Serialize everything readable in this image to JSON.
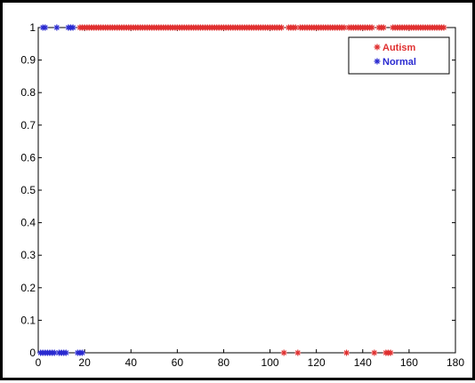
{
  "chart_data": {
    "type": "scatter",
    "title": "",
    "xlabel": "",
    "ylabel": "",
    "xlim": [
      0,
      180
    ],
    "ylim": [
      0,
      1
    ],
    "grid": false,
    "legend_position": "top-right",
    "x_ticks": [
      0,
      20,
      40,
      60,
      80,
      100,
      120,
      140,
      160,
      180
    ],
    "y_ticks": [
      0,
      0.1,
      0.2,
      0.3,
      0.4,
      0.5,
      0.6,
      0.7,
      0.8,
      0.9,
      1
    ],
    "x_tick_labels": [
      "0",
      "20",
      "40",
      "60",
      "80",
      "100",
      "120",
      "140",
      "160",
      "180"
    ],
    "y_tick_labels": [
      "0",
      "0.1",
      "0.2",
      "0.3",
      "0.4",
      "0.5",
      "0.6",
      "0.7",
      "0.8",
      "0.9",
      "1"
    ],
    "series": [
      {
        "name": "Autism",
        "color": "#e03030",
        "marker": "asterisk",
        "points": [
          [
            18,
            1
          ],
          [
            19,
            1
          ],
          [
            20,
            1
          ],
          [
            21,
            1
          ],
          [
            22,
            1
          ],
          [
            23,
            1
          ],
          [
            24,
            1
          ],
          [
            25,
            1
          ],
          [
            26,
            1
          ],
          [
            27,
            1
          ],
          [
            28,
            1
          ],
          [
            29,
            1
          ],
          [
            30,
            1
          ],
          [
            31,
            1
          ],
          [
            32,
            1
          ],
          [
            33,
            1
          ],
          [
            34,
            1
          ],
          [
            35,
            1
          ],
          [
            36,
            1
          ],
          [
            37,
            1
          ],
          [
            38,
            1
          ],
          [
            39,
            1
          ],
          [
            40,
            1
          ],
          [
            41,
            1
          ],
          [
            42,
            1
          ],
          [
            43,
            1
          ],
          [
            44,
            1
          ],
          [
            45,
            1
          ],
          [
            46,
            1
          ],
          [
            47,
            1
          ],
          [
            48,
            1
          ],
          [
            49,
            1
          ],
          [
            50,
            1
          ],
          [
            51,
            1
          ],
          [
            52,
            1
          ],
          [
            53,
            1
          ],
          [
            54,
            1
          ],
          [
            55,
            1
          ],
          [
            56,
            1
          ],
          [
            57,
            1
          ],
          [
            58,
            1
          ],
          [
            59,
            1
          ],
          [
            60,
            1
          ],
          [
            61,
            1
          ],
          [
            62,
            1
          ],
          [
            63,
            1
          ],
          [
            64,
            1
          ],
          [
            65,
            1
          ],
          [
            66,
            1
          ],
          [
            67,
            1
          ],
          [
            68,
            1
          ],
          [
            69,
            1
          ],
          [
            70,
            1
          ],
          [
            71,
            1
          ],
          [
            72,
            1
          ],
          [
            73,
            1
          ],
          [
            74,
            1
          ],
          [
            75,
            1
          ],
          [
            76,
            1
          ],
          [
            77,
            1
          ],
          [
            78,
            1
          ],
          [
            79,
            1
          ],
          [
            80,
            1
          ],
          [
            81,
            1
          ],
          [
            82,
            1
          ],
          [
            83,
            1
          ],
          [
            84,
            1
          ],
          [
            85,
            1
          ],
          [
            86,
            1
          ],
          [
            87,
            1
          ],
          [
            88,
            1
          ],
          [
            89,
            1
          ],
          [
            90,
            1
          ],
          [
            91,
            1
          ],
          [
            92,
            1
          ],
          [
            93,
            1
          ],
          [
            94,
            1
          ],
          [
            95,
            1
          ],
          [
            96,
            1
          ],
          [
            97,
            1
          ],
          [
            98,
            1
          ],
          [
            99,
            1
          ],
          [
            100,
            1
          ],
          [
            101,
            1
          ],
          [
            102,
            1
          ],
          [
            103,
            1
          ],
          [
            104,
            1
          ],
          [
            105,
            1
          ],
          [
            108,
            1
          ],
          [
            109,
            1
          ],
          [
            110,
            1
          ],
          [
            111,
            1
          ],
          [
            113,
            1
          ],
          [
            114,
            1
          ],
          [
            115,
            1
          ],
          [
            116,
            1
          ],
          [
            117,
            1
          ],
          [
            118,
            1
          ],
          [
            119,
            1
          ],
          [
            120,
            1
          ],
          [
            121,
            1
          ],
          [
            122,
            1
          ],
          [
            123,
            1
          ],
          [
            124,
            1
          ],
          [
            125,
            1
          ],
          [
            126,
            1
          ],
          [
            127,
            1
          ],
          [
            128,
            1
          ],
          [
            129,
            1
          ],
          [
            130,
            1
          ],
          [
            131,
            1
          ],
          [
            132,
            1
          ],
          [
            134,
            1
          ],
          [
            135,
            1
          ],
          [
            136,
            1
          ],
          [
            137,
            1
          ],
          [
            138,
            1
          ],
          [
            139,
            1
          ],
          [
            140,
            1
          ],
          [
            141,
            1
          ],
          [
            142,
            1
          ],
          [
            143,
            1
          ],
          [
            144,
            1
          ],
          [
            147,
            1
          ],
          [
            148,
            1
          ],
          [
            149,
            1
          ],
          [
            153,
            1
          ],
          [
            154,
            1
          ],
          [
            155,
            1
          ],
          [
            156,
            1
          ],
          [
            157,
            1
          ],
          [
            158,
            1
          ],
          [
            159,
            1
          ],
          [
            160,
            1
          ],
          [
            161,
            1
          ],
          [
            162,
            1
          ],
          [
            163,
            1
          ],
          [
            164,
            1
          ],
          [
            165,
            1
          ],
          [
            166,
            1
          ],
          [
            167,
            1
          ],
          [
            168,
            1
          ],
          [
            169,
            1
          ],
          [
            170,
            1
          ],
          [
            171,
            1
          ],
          [
            172,
            1
          ],
          [
            173,
            1
          ],
          [
            174,
            1
          ],
          [
            175,
            1
          ],
          [
            106,
            0
          ],
          [
            112,
            0
          ],
          [
            133,
            0
          ],
          [
            145,
            0
          ],
          [
            150,
            0
          ],
          [
            151,
            0
          ],
          [
            152,
            0
          ]
        ]
      },
      {
        "name": "Normal",
        "color": "#2a2ad0",
        "marker": "asterisk",
        "points": [
          [
            2,
            1
          ],
          [
            3,
            1
          ],
          [
            8,
            1
          ],
          [
            13,
            1
          ],
          [
            14,
            1
          ],
          [
            15,
            1
          ],
          [
            1,
            0
          ],
          [
            2,
            0
          ],
          [
            3,
            0
          ],
          [
            4,
            0
          ],
          [
            5,
            0
          ],
          [
            6,
            0
          ],
          [
            7,
            0
          ],
          [
            9,
            0
          ],
          [
            10,
            0
          ],
          [
            11,
            0
          ],
          [
            12,
            0
          ],
          [
            17,
            0
          ],
          [
            18,
            0
          ],
          [
            19,
            0
          ]
        ]
      }
    ]
  }
}
